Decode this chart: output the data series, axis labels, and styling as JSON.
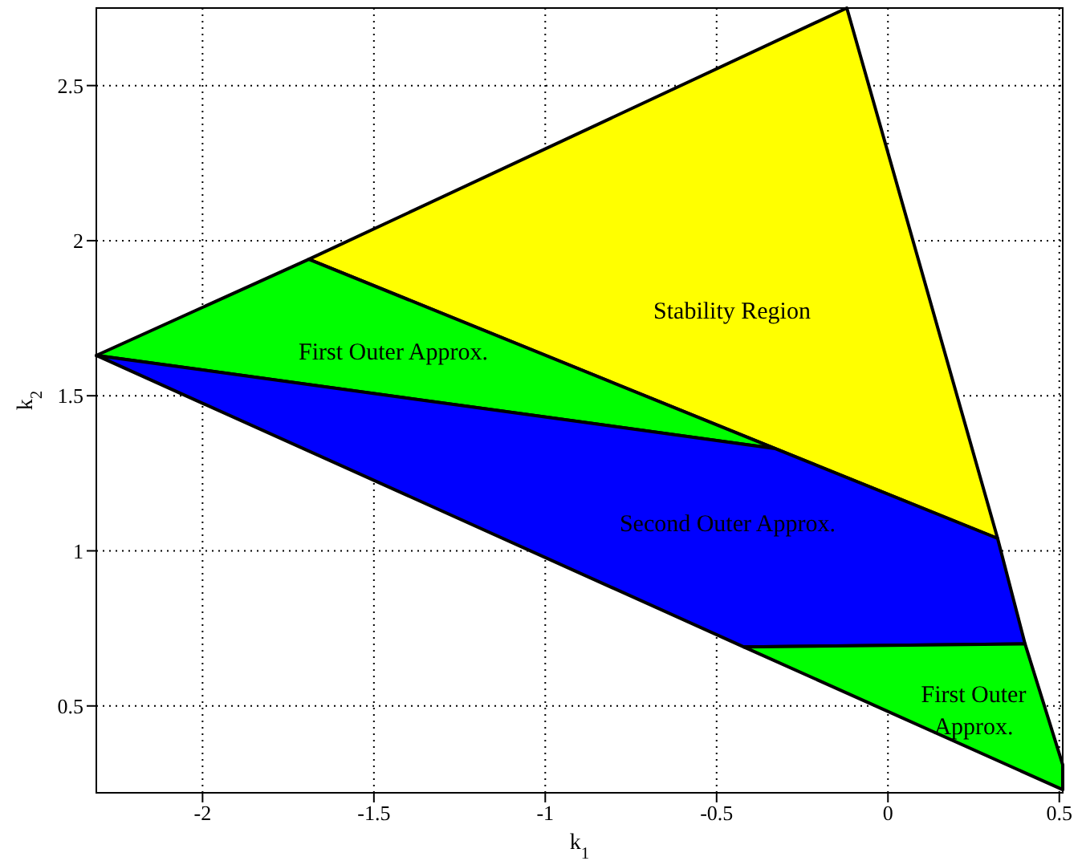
{
  "chart_data": {
    "type": "area",
    "xlabel": "k$_{1}$",
    "ylabel": "k$_{2}$",
    "xlim": [
      -2.31,
      0.51
    ],
    "ylim": [
      0.22,
      2.75
    ],
    "xticks": [
      -2,
      -1.5,
      -1,
      -0.5,
      0,
      0.5
    ],
    "yticks": [
      0.5,
      1,
      1.5,
      2,
      2.5
    ],
    "grid": true,
    "series": [
      {
        "name": "Stability Region",
        "color": "#ffff00",
        "x": [
          -1.69,
          -0.12,
          0.32,
          -0.33
        ],
        "values": [
          1.94,
          2.75,
          1.04,
          1.33
        ]
      },
      {
        "name": "First Outer Approx.",
        "color": "#00ff00",
        "x": [
          -2.31,
          -1.69,
          -0.33
        ],
        "values": [
          1.63,
          1.94,
          1.33
        ]
      },
      {
        "name": "Second Outer Approx.",
        "color": "#0000ff",
        "x": [
          -2.31,
          -0.33,
          0.32,
          0.4,
          -0.42
        ],
        "values": [
          1.63,
          1.33,
          1.04,
          0.7,
          0.69
        ]
      },
      {
        "name": "First Outer\nApprox.",
        "color": "#00ff00",
        "x": [
          -0.42,
          0.4,
          0.51,
          0.51
        ],
        "values": [
          0.69,
          0.7,
          0.31,
          0.23
        ]
      }
    ]
  }
}
